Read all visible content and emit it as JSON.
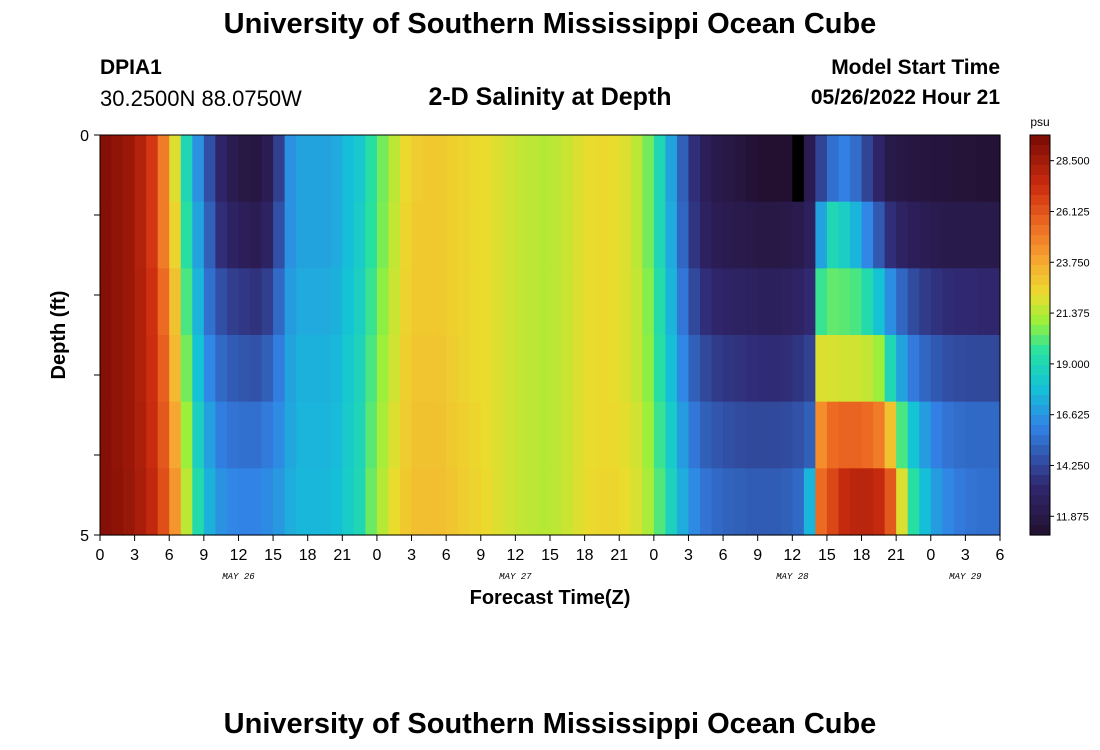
{
  "header": {
    "title": "University of Southern Mississippi Ocean Cube",
    "station": "DPIA1",
    "coordinates": "30.2500N  88.0750W",
    "subtitle": "2-D Salinity at Depth",
    "model_start_label": "Model Start Time",
    "model_start_value": "05/26/2022 Hour 21"
  },
  "footer": {
    "title": "University of Southern Mississippi Ocean Cube"
  },
  "chart_data": {
    "type": "heatmap",
    "title": "2-D Salinity at Depth",
    "xlabel": "Forecast Time(Z)",
    "ylabel": "Depth (ft)",
    "x_ticks": [
      "0",
      "3",
      "6",
      "9",
      "12",
      "15",
      "18",
      "21",
      "0",
      "3",
      "6",
      "9",
      "12",
      "15",
      "18",
      "21",
      "0",
      "3",
      "6",
      "9",
      "12",
      "15",
      "18",
      "21",
      "0",
      "3",
      "6"
    ],
    "day_labels": [
      {
        "label": "MAY 26",
        "tick_index": 4
      },
      {
        "label": "MAY 27",
        "tick_index": 12
      },
      {
        "label": "MAY 28",
        "tick_index": 20
      },
      {
        "label": "MAY 29",
        "tick_index": 25
      }
    ],
    "y_ticks": [
      "0",
      "5"
    ],
    "ylim": [
      0,
      5
    ],
    "hours": [
      0,
      78
    ],
    "colorbar": {
      "unit": "psu",
      "min": 11.0,
      "max": 29.7,
      "ticks": [
        "28.500",
        "26.125",
        "23.750",
        "21.375",
        "19.000",
        "16.625",
        "14.250",
        "11.875"
      ]
    },
    "rows": [
      [
        29.3,
        29.0,
        28.7,
        28.0,
        27.0,
        25.0,
        22.0,
        19.0,
        16.5,
        14.5,
        13.0,
        12.2,
        11.8,
        11.6,
        12.3,
        14.0,
        16.5,
        17.0,
        17.0,
        17.0,
        17.2,
        17.8,
        18.2,
        19.5,
        20.5,
        21.5,
        22.3,
        22.7,
        22.8,
        22.8,
        22.6,
        22.5,
        22.3,
        22.2,
        22.0,
        21.8,
        21.6,
        21.5,
        21.4,
        21.5,
        21.7,
        22.0,
        22.2,
        22.3,
        22.2,
        22.0,
        21.5,
        20.5,
        19.0,
        17.0,
        15.0,
        13.5,
        12.5,
        12.0,
        11.8,
        11.5,
        11.2,
        11.0,
        10.8,
        11.0,
        11.4,
        12.2,
        14.2,
        15.5,
        16.0,
        15.4,
        14.2,
        13.0,
        12.0,
        11.8,
        11.6,
        11.5,
        11.4,
        11.4,
        11.3,
        11.3,
        11.2,
        11.2
      ],
      [
        29.3,
        29.0,
        28.7,
        28.0,
        27.0,
        25.0,
        22.5,
        19.5,
        17.0,
        15.0,
        13.5,
        12.8,
        12.5,
        12.3,
        12.8,
        14.5,
        16.5,
        17.0,
        17.0,
        17.0,
        17.2,
        17.8,
        18.4,
        19.6,
        20.6,
        21.6,
        22.4,
        22.8,
        22.8,
        22.8,
        22.6,
        22.5,
        22.3,
        22.2,
        22.0,
        21.8,
        21.6,
        21.5,
        21.4,
        21.5,
        21.7,
        22.0,
        22.2,
        22.3,
        22.2,
        22.0,
        21.5,
        20.5,
        19.0,
        17.2,
        15.2,
        13.7,
        12.7,
        12.3,
        12.1,
        12.0,
        11.9,
        11.8,
        11.8,
        11.9,
        12.1,
        12.6,
        17.0,
        19.0,
        18.5,
        17.5,
        16.2,
        14.8,
        13.5,
        12.8,
        12.5,
        12.3,
        12.1,
        12.0,
        12.0,
        12.0,
        12.0,
        12.0
      ],
      [
        29.3,
        29.0,
        28.7,
        28.1,
        27.2,
        25.5,
        23.0,
        20.0,
        17.5,
        15.5,
        14.5,
        14.0,
        13.8,
        13.6,
        14.0,
        15.3,
        16.8,
        17.2,
        17.2,
        17.2,
        17.4,
        18.0,
        18.6,
        19.8,
        20.8,
        21.7,
        22.5,
        22.8,
        22.8,
        22.8,
        22.6,
        22.5,
        22.3,
        22.2,
        22.0,
        21.8,
        21.6,
        21.5,
        21.4,
        21.5,
        21.7,
        22.0,
        22.2,
        22.3,
        22.2,
        22.0,
        21.6,
        20.7,
        19.3,
        17.5,
        15.7,
        14.3,
        13.5,
        13.1,
        12.9,
        12.8,
        12.7,
        12.6,
        12.6,
        12.7,
        12.9,
        13.3,
        19.8,
        20.3,
        20.2,
        20.0,
        19.2,
        18.0,
        16.4,
        15.2,
        14.4,
        13.9,
        13.6,
        13.4,
        13.3,
        13.3,
        13.2,
        13.2
      ],
      [
        29.3,
        29.0,
        28.7,
        28.1,
        27.3,
        25.8,
        23.3,
        20.5,
        18.0,
        16.2,
        15.3,
        14.9,
        14.7,
        14.6,
        15.0,
        15.9,
        17.0,
        17.4,
        17.4,
        17.4,
        17.6,
        18.2,
        18.8,
        20.0,
        21.0,
        21.8,
        22.6,
        22.9,
        22.9,
        22.9,
        22.7,
        22.5,
        22.3,
        22.2,
        22.0,
        21.8,
        21.6,
        21.5,
        21.4,
        21.5,
        21.7,
        22.0,
        22.2,
        22.3,
        22.2,
        22.0,
        21.6,
        20.8,
        19.5,
        17.8,
        16.2,
        15.0,
        14.3,
        13.9,
        13.7,
        13.6,
        13.5,
        13.4,
        13.4,
        13.5,
        13.7,
        14.1,
        22.0,
        21.9,
        21.8,
        21.8,
        21.6,
        21.0,
        19.0,
        17.0,
        15.8,
        15.2,
        14.8,
        14.5,
        14.4,
        14.3,
        14.3,
        14.3
      ],
      [
        29.3,
        29.0,
        28.7,
        28.2,
        27.4,
        26.0,
        23.8,
        21.0,
        18.6,
        16.9,
        15.9,
        15.6,
        15.5,
        15.5,
        15.8,
        16.3,
        17.1,
        17.5,
        17.5,
        17.5,
        17.7,
        18.3,
        18.9,
        20.2,
        21.2,
        22.0,
        22.7,
        23.0,
        23.0,
        23.0,
        22.8,
        22.6,
        22.4,
        22.2,
        22.0,
        21.8,
        21.6,
        21.5,
        21.4,
        21.5,
        21.7,
        22.0,
        22.2,
        22.3,
        22.3,
        22.1,
        21.8,
        21.0,
        19.8,
        18.3,
        16.8,
        15.7,
        15.0,
        14.7,
        14.5,
        14.4,
        14.3,
        14.3,
        14.3,
        14.4,
        14.6,
        15.0,
        24.5,
        25.5,
        25.7,
        25.7,
        25.5,
        25.0,
        23.0,
        20.0,
        18.0,
        16.8,
        16.0,
        15.6,
        15.4,
        15.3,
        15.3,
        15.3
      ],
      [
        29.3,
        29.1,
        28.8,
        28.3,
        27.6,
        26.3,
        24.3,
        21.5,
        19.2,
        17.4,
        16.5,
        16.2,
        16.1,
        16.1,
        16.3,
        16.7,
        17.3,
        17.6,
        17.6,
        17.6,
        17.8,
        18.4,
        19.0,
        20.4,
        21.4,
        22.2,
        22.8,
        23.1,
        23.1,
        23.1,
        22.9,
        22.7,
        22.5,
        22.3,
        22.0,
        21.8,
        21.6,
        21.5,
        21.4,
        21.5,
        21.7,
        22.0,
        22.3,
        22.4,
        22.4,
        22.2,
        21.9,
        21.2,
        20.1,
        18.7,
        17.3,
        16.3,
        15.6,
        15.3,
        15.1,
        15.0,
        14.9,
        14.9,
        14.9,
        15.0,
        15.3,
        17.5,
        25.5,
        26.5,
        27.5,
        27.8,
        27.8,
        27.5,
        26.0,
        22.0,
        19.5,
        17.8,
        16.8,
        16.2,
        15.8,
        15.6,
        15.5,
        15.5
      ]
    ],
    "black_cells": [
      {
        "row": 0,
        "col": 60
      }
    ]
  }
}
